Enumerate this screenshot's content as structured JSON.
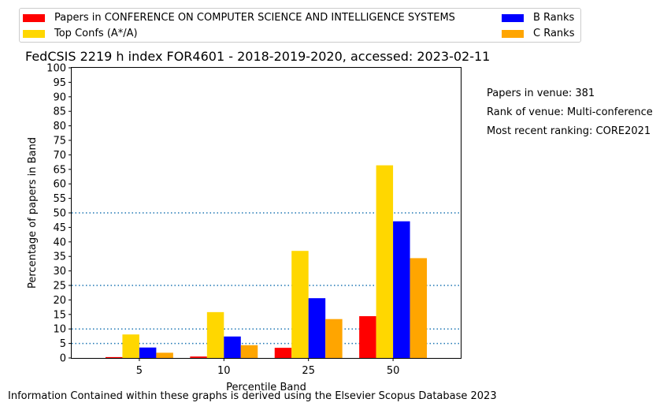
{
  "chart_data": {
    "type": "bar",
    "title": "FedCSIS 2219 h index FOR4601 - 2018-2019-2020, accessed: 2023-02-11",
    "xlabel": "Percentile Band",
    "ylabel": "Percentage of papers in Band",
    "categories": [
      "5",
      "10",
      "25",
      "50"
    ],
    "ylim": [
      0,
      100
    ],
    "yticks": [
      0,
      5,
      10,
      15,
      20,
      25,
      30,
      35,
      40,
      45,
      50,
      55,
      60,
      65,
      70,
      75,
      80,
      85,
      90,
      95,
      100
    ],
    "reference_lines": [
      5,
      10,
      25,
      50
    ],
    "legend_position": "top",
    "series": [
      {
        "name": "Papers in CONFERENCE ON COMPUTER SCIENCE AND INTELLIGENCE SYSTEMS",
        "color": "#ff0000",
        "values": [
          0.3,
          0.5,
          3.5,
          14.4
        ]
      },
      {
        "name": "Top Confs (A*/A)",
        "color": "#ffd700",
        "values": [
          8.1,
          15.8,
          36.9,
          66.4
        ]
      },
      {
        "name": "B Ranks",
        "color": "#0000ff",
        "values": [
          3.6,
          7.4,
          20.6,
          47.1
        ]
      },
      {
        "name": "C Ranks",
        "color": "#ffa500",
        "values": [
          1.8,
          4.4,
          13.4,
          34.4
        ]
      }
    ]
  },
  "side_notes": {
    "papers": "Papers in venue: 381",
    "rank": "Rank of venue: Multi-conference",
    "recent": "Most recent ranking: CORE2021"
  },
  "footer": "Information Contained within these graphs is derived using the Elsevier Scopus Database 2023"
}
